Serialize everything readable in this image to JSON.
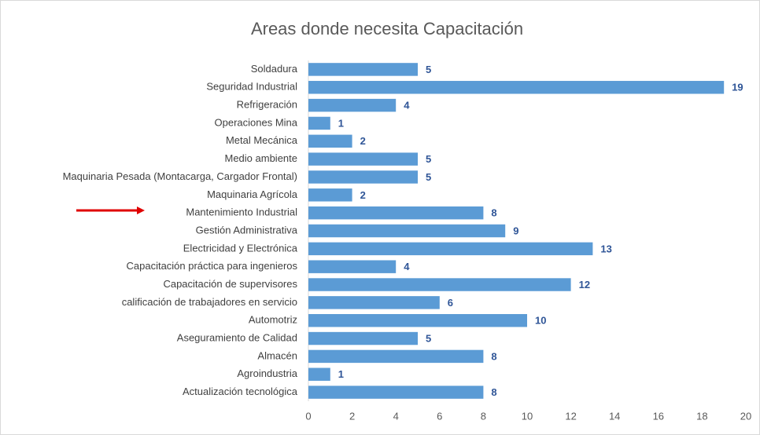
{
  "chart_data": {
    "type": "bar",
    "orientation": "horizontal",
    "title": "Areas donde necesita Capacitación",
    "categories": [
      "Soldadura",
      "Seguridad Industrial",
      "Refrigeración",
      "Operaciones Mina",
      "Metal Mecánica",
      "Medio ambiente",
      "Maquinaria Pesada (Montacarga, Cargador Frontal)",
      "Maquinaria Agrícola",
      "Mantenimiento Industrial",
      "Gestión Administrativa",
      "Electricidad y Electrónica",
      "Capacitación práctica para ingenieros",
      "Capacitación de supervisores",
      "calificación de trabajadores en servicio",
      "Automotriz",
      "Aseguramiento de Calidad",
      "Almacén",
      "Agroindustria",
      "Actualización tecnológica"
    ],
    "values": [
      5,
      19,
      4,
      1,
      2,
      5,
      5,
      2,
      8,
      9,
      13,
      4,
      12,
      6,
      10,
      5,
      8,
      1,
      8
    ],
    "color": "#5b9bd5",
    "xlim": [
      0,
      20
    ],
    "xticks": [
      0,
      2,
      4,
      6,
      8,
      10,
      12,
      14,
      16,
      18,
      20
    ],
    "grid": false
  }
}
